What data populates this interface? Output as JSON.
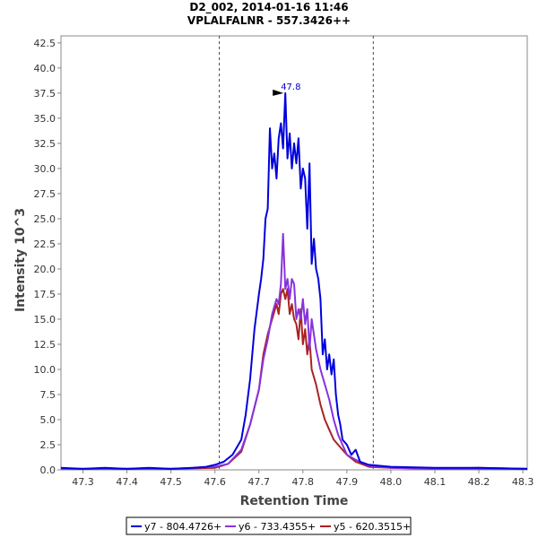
{
  "chart_data": {
    "type": "line",
    "title": "D2_002, 2014-01-16 11:46",
    "subtitle": "VPLALFALNR - 557.3426++",
    "xlabel": "Retention Time",
    "ylabel": "Intensity 10^3",
    "xlim": [
      47.25,
      48.31
    ],
    "ylim": [
      0,
      43.2
    ],
    "x_ticks": [
      "47.3",
      "47.4",
      "47.5",
      "47.6",
      "47.7",
      "47.8",
      "47.9",
      "48.0",
      "48.1",
      "48.2",
      "48.3"
    ],
    "y_ticks": [
      "0.0",
      "2.5",
      "5.0",
      "7.5",
      "10.0",
      "12.5",
      "15.0",
      "17.5",
      "20.0",
      "22.5",
      "25.0",
      "27.5",
      "30.0",
      "32.5",
      "35.0",
      "37.5",
      "40.0",
      "42.5"
    ],
    "boundaries": [
      47.61,
      47.96
    ],
    "peak_annotation": {
      "x": 47.76,
      "y": 37.5,
      "label": "47.8"
    },
    "grid": false,
    "legend_position": "bottom",
    "series": [
      {
        "name": "y7 - 804.4726+",
        "color": "#0000dd",
        "x": [
          47.25,
          47.3,
          47.35,
          47.4,
          47.45,
          47.5,
          47.55,
          47.58,
          47.6,
          47.62,
          47.64,
          47.66,
          47.67,
          47.68,
          47.69,
          47.7,
          47.705,
          47.71,
          47.715,
          47.72,
          47.725,
          47.73,
          47.735,
          47.74,
          47.745,
          47.75,
          47.755,
          47.76,
          47.765,
          47.77,
          47.775,
          47.78,
          47.785,
          47.79,
          47.795,
          47.8,
          47.805,
          47.81,
          47.815,
          47.82,
          47.825,
          47.83,
          47.835,
          47.84,
          47.845,
          47.85,
          47.855,
          47.86,
          47.865,
          47.87,
          47.875,
          47.88,
          47.885,
          47.89,
          47.9,
          47.91,
          47.92,
          47.93,
          47.95,
          48.0,
          48.1,
          48.2,
          48.31
        ],
        "values": [
          0.2,
          0.1,
          0.2,
          0.1,
          0.2,
          0.1,
          0.2,
          0.3,
          0.5,
          0.8,
          1.5,
          3.0,
          5.5,
          9.0,
          14.0,
          17.5,
          19.0,
          21.0,
          25.0,
          26.0,
          34.0,
          30.0,
          31.5,
          29.0,
          33.0,
          34.5,
          32.0,
          37.5,
          31.0,
          33.5,
          30.0,
          32.5,
          30.5,
          33.0,
          28.0,
          30.0,
          29.0,
          24.0,
          30.5,
          20.5,
          23.0,
          20.0,
          19.0,
          17.0,
          11.5,
          13.0,
          10.0,
          11.5,
          9.5,
          11.0,
          7.5,
          5.5,
          4.5,
          3.0,
          2.5,
          1.5,
          2.0,
          0.8,
          0.5,
          0.3,
          0.2,
          0.2,
          0.1
        ]
      },
      {
        "name": "y6 - 733.4355+",
        "color": "#8833dd",
        "x": [
          47.25,
          47.4,
          47.5,
          47.6,
          47.63,
          47.66,
          47.68,
          47.7,
          47.71,
          47.72,
          47.73,
          47.74,
          47.745,
          47.75,
          47.755,
          47.76,
          47.765,
          47.77,
          47.775,
          47.78,
          47.785,
          47.79,
          47.795,
          47.8,
          47.805,
          47.81,
          47.815,
          47.82,
          47.83,
          47.84,
          47.85,
          47.86,
          47.87,
          47.88,
          47.89,
          47.9,
          47.92,
          47.95,
          48.0,
          48.1,
          48.2,
          48.31
        ],
        "values": [
          0.1,
          0.1,
          0.1,
          0.3,
          0.6,
          2.0,
          4.5,
          8.0,
          11.0,
          13.0,
          15.5,
          17.0,
          16.5,
          18.5,
          23.5,
          18.0,
          19.0,
          17.0,
          19.0,
          18.5,
          15.0,
          16.0,
          15.0,
          17.0,
          14.5,
          16.0,
          12.0,
          15.0,
          12.0,
          10.0,
          8.5,
          7.0,
          5.0,
          3.5,
          2.5,
          1.5,
          1.0,
          0.4,
          0.2,
          0.1,
          0.1,
          0.1
        ]
      },
      {
        "name": "y5 - 620.3515+",
        "color": "#aa2222",
        "x": [
          47.25,
          47.4,
          47.5,
          47.6,
          47.63,
          47.66,
          47.68,
          47.7,
          47.71,
          47.72,
          47.73,
          47.74,
          47.745,
          47.75,
          47.755,
          47.76,
          47.765,
          47.77,
          47.775,
          47.78,
          47.785,
          47.79,
          47.795,
          47.8,
          47.805,
          47.81,
          47.815,
          47.82,
          47.83,
          47.84,
          47.85,
          47.86,
          47.87,
          47.88,
          47.89,
          47.9,
          47.92,
          47.95,
          48.0,
          48.1,
          48.2,
          48.31
        ],
        "values": [
          0.1,
          0.1,
          0.1,
          0.2,
          0.6,
          1.8,
          4.5,
          8.0,
          11.5,
          13.5,
          15.0,
          16.5,
          15.5,
          17.5,
          18.0,
          17.0,
          18.0,
          15.5,
          16.5,
          15.0,
          14.5,
          13.0,
          16.0,
          12.5,
          14.0,
          11.5,
          13.0,
          10.0,
          8.5,
          6.5,
          5.0,
          4.0,
          3.0,
          2.5,
          2.0,
          1.5,
          0.8,
          0.3,
          0.2,
          0.1,
          0.2,
          0.1
        ]
      }
    ]
  }
}
